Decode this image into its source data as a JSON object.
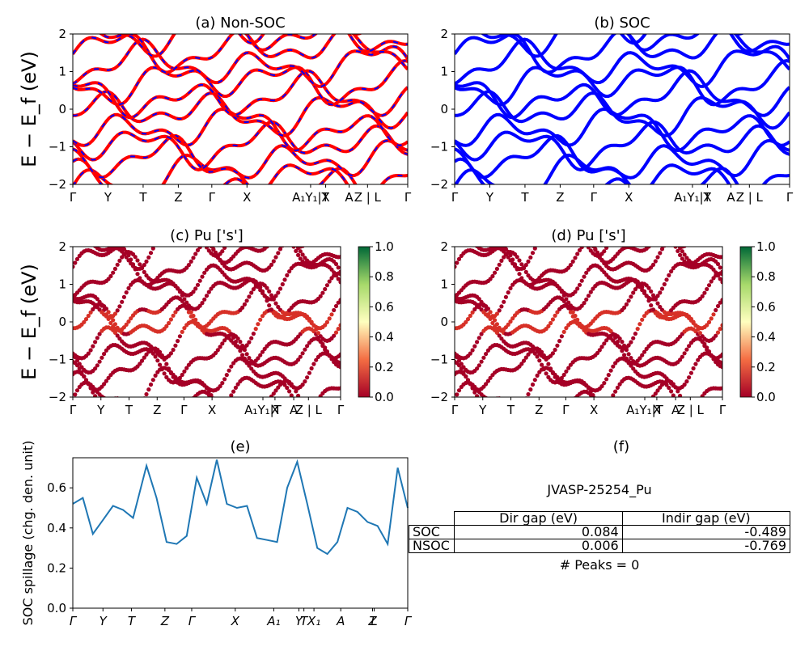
{
  "figure": {
    "panels": {
      "a": {
        "title": "(a) Non-SOC"
      },
      "b": {
        "title": "(b) SOC"
      },
      "c": {
        "title": "(c)  Pu ['s']"
      },
      "d": {
        "title": "(d) Pu ['s']"
      },
      "e": {
        "title": "(e)"
      },
      "f": {
        "title": "(f)"
      }
    },
    "band_ylabel": "E − E_f (eV)",
    "kpath_labels": [
      "Γ",
      "Y",
      "T",
      "Z",
      "Γ",
      "X",
      "A₁Y₁|T",
      "X",
      "A",
      "Z | L",
      "Γ"
    ],
    "colorbar_ticks": [
      "1.0",
      "0.8",
      "0.6",
      "0.4",
      "0.2",
      "0.0"
    ],
    "band_yticks": [
      "2",
      "1",
      "0",
      "−1",
      "−2"
    ],
    "spillage_ylabel": "SOC spillage (chg. den. unit)",
    "spillage_yticks": [
      "0.6",
      "0.4",
      "0.2",
      "0.0"
    ],
    "spillage_xlabels": [
      "Γ",
      "Y",
      "T",
      "Z",
      "Γ",
      "X",
      "A₁",
      "Y",
      "T",
      "X₁",
      "A",
      "Z",
      "L",
      "Γ"
    ]
  },
  "table": {
    "material_id": "JVASP-25254_Pu",
    "headers": [
      "",
      "Dir gap (eV)",
      "Indir gap (eV)"
    ],
    "rows": [
      {
        "label": "SOC",
        "dir": "0.084",
        "indir": "-0.489"
      },
      {
        "label": "NSOC",
        "dir": "0.006",
        "indir": "-0.769"
      }
    ],
    "peaks_text": "# Peaks = 0"
  },
  "colors": {
    "nonsoc_band": "#ff0000",
    "nonsoc_dash": "#0000ff",
    "soc_band": "#0000ff",
    "spillage": "#1f77b4"
  },
  "chart_data": {
    "type": "line",
    "title": "(e)",
    "ylabel": "SOC spillage (chg. den. unit)",
    "ylim": [
      0,
      0.75
    ],
    "x": [
      0,
      0.03,
      0.06,
      0.09,
      0.12,
      0.15,
      0.18,
      0.22,
      0.25,
      0.28,
      0.31,
      0.34,
      0.37,
      0.4,
      0.43,
      0.46,
      0.49,
      0.52,
      0.55,
      0.58,
      0.61,
      0.64,
      0.67,
      0.7,
      0.73,
      0.76,
      0.79,
      0.82,
      0.85,
      0.88,
      0.91,
      0.94,
      0.97,
      1.0
    ],
    "series": [
      {
        "values": [
          0.52,
          0.55,
          0.37,
          0.44,
          0.51,
          0.49,
          0.45,
          0.71,
          0.55,
          0.33,
          0.32,
          0.36,
          0.65,
          0.52,
          0.74,
          0.52,
          0.5,
          0.51,
          0.35,
          0.34,
          0.33,
          0.6,
          0.73,
          0.52,
          0.3,
          0.27,
          0.33,
          0.5,
          0.48,
          0.43,
          0.41,
          0.32,
          0.7,
          0.5
        ]
      }
    ]
  }
}
